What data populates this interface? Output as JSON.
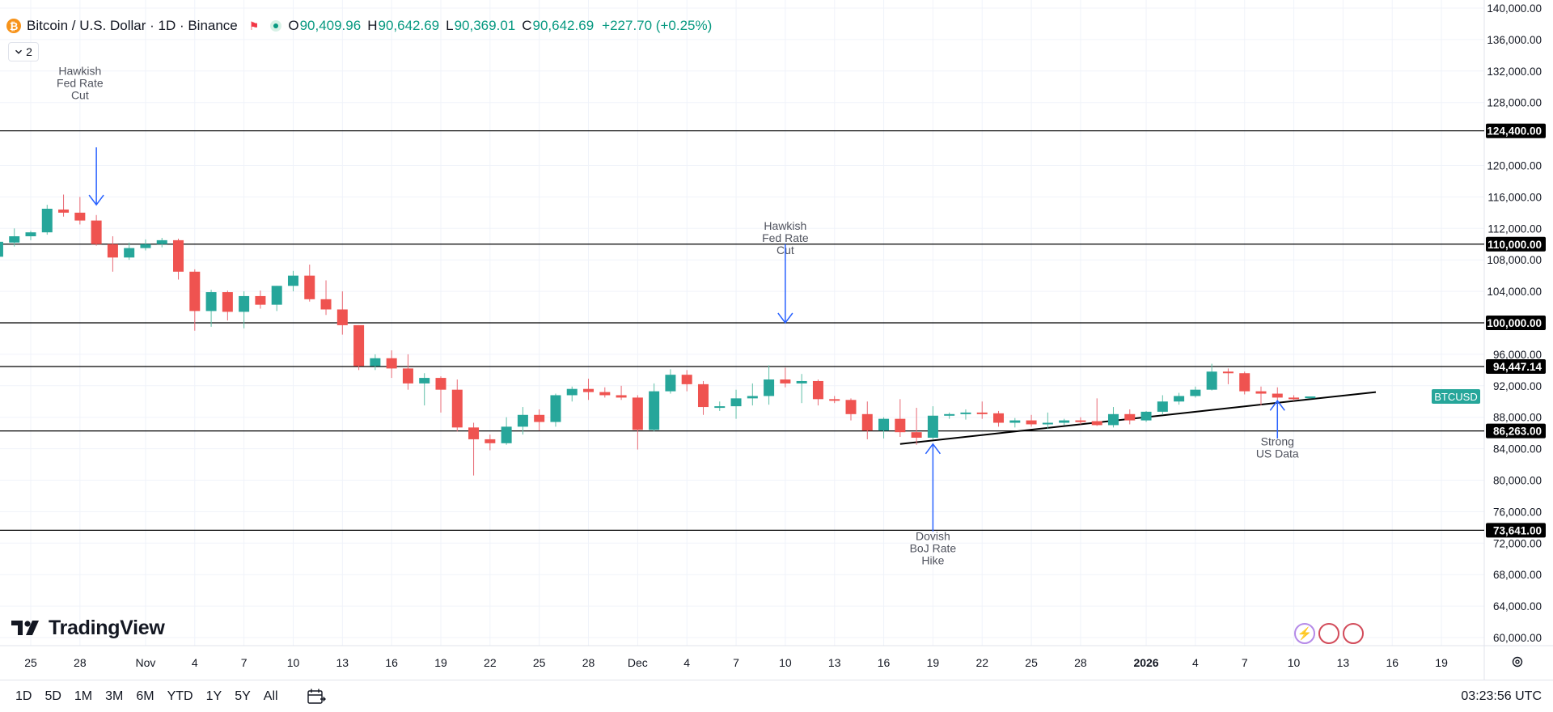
{
  "header": {
    "symbol_title": "Bitcoin / U.S. Dollar · 1D · Binance",
    "coin_glyph": "₿",
    "flag_icon": "flag-icon",
    "o_label": "O",
    "o_value": "90,409.96",
    "h_label": "H",
    "h_value": "90,642.69",
    "l_label": "L",
    "l_value": "90,369.01",
    "c_label": "C",
    "c_value": "90,642.69",
    "change": "+227.70 (+0.25%)"
  },
  "indicator_toggle": {
    "icon": "chevron-down-icon",
    "count": "2"
  },
  "logo": {
    "text": "TradingView"
  },
  "bottom_bar": {
    "ranges": [
      "1D",
      "5D",
      "1M",
      "3M",
      "6M",
      "YTD",
      "1Y",
      "5Y",
      "All"
    ],
    "compare_icon": "calendar-range-icon",
    "clock": "03:23:56 UTC"
  },
  "colors": {
    "up": "#26a69a",
    "down": "#ef5350",
    "up_wick": "#5fbfa7",
    "down_wick": "#e86a75",
    "arrow": "#2962ff",
    "annotation": "#50535e",
    "hline": "#000000",
    "grid": "#f0f3fa"
  },
  "chart_data": {
    "type": "candlestick",
    "title": "Bitcoin / U.S. Dollar · 1D · Binance",
    "ylim": [
      58000,
      141000
    ],
    "y_axis_ticks": [
      {
        "v": 60000,
        "label": "60,000.00"
      },
      {
        "v": 64000,
        "label": "64,000.00"
      },
      {
        "v": 68000,
        "label": "68,000.00"
      },
      {
        "v": 72000,
        "label": "72,000.00"
      },
      {
        "v": 76000,
        "label": "76,000.00"
      },
      {
        "v": 80000,
        "label": "80,000.00"
      },
      {
        "v": 84000,
        "label": "84,000.00"
      },
      {
        "v": 88000,
        "label": "88,000.00"
      },
      {
        "v": 92000,
        "label": "92,000.00"
      },
      {
        "v": 96000,
        "label": "96,000.00"
      },
      {
        "v": 104000,
        "label": "104,000.00"
      },
      {
        "v": 108000,
        "label": "108,000.00"
      },
      {
        "v": 112000,
        "label": "112,000.00"
      },
      {
        "v": 116000,
        "label": "116,000.00"
      },
      {
        "v": 120000,
        "label": "120,000.00"
      },
      {
        "v": 128000,
        "label": "128,000.00"
      },
      {
        "v": 132000,
        "label": "132,000.00"
      },
      {
        "v": 136000,
        "label": "136,000.00"
      },
      {
        "v": 140000,
        "label": "140,000.00"
      }
    ],
    "x_axis_ticks": [
      {
        "d": "2025-10-25",
        "label": "25"
      },
      {
        "d": "2025-10-28",
        "label": "28"
      },
      {
        "d": "2025-11-01",
        "label": "Nov"
      },
      {
        "d": "2025-11-04",
        "label": "4"
      },
      {
        "d": "2025-11-07",
        "label": "7"
      },
      {
        "d": "2025-11-10",
        "label": "10"
      },
      {
        "d": "2025-11-13",
        "label": "13"
      },
      {
        "d": "2025-11-16",
        "label": "16"
      },
      {
        "d": "2025-11-19",
        "label": "19"
      },
      {
        "d": "2025-11-22",
        "label": "22"
      },
      {
        "d": "2025-11-25",
        "label": "25"
      },
      {
        "d": "2025-11-28",
        "label": "28"
      },
      {
        "d": "2025-12-01",
        "label": "Dec"
      },
      {
        "d": "2025-12-04",
        "label": "4"
      },
      {
        "d": "2025-12-07",
        "label": "7"
      },
      {
        "d": "2025-12-10",
        "label": "10"
      },
      {
        "d": "2025-12-13",
        "label": "13"
      },
      {
        "d": "2025-12-16",
        "label": "16"
      },
      {
        "d": "2025-12-19",
        "label": "19"
      },
      {
        "d": "2025-12-22",
        "label": "22"
      },
      {
        "d": "2025-12-25",
        "label": "25"
      },
      {
        "d": "2025-12-28",
        "label": "28"
      },
      {
        "d": "2026-01-01",
        "label": "2026"
      },
      {
        "d": "2026-01-04",
        "label": "4"
      },
      {
        "d": "2026-01-07",
        "label": "7"
      },
      {
        "d": "2026-01-10",
        "label": "10"
      },
      {
        "d": "2026-01-13",
        "label": "13"
      },
      {
        "d": "2026-01-16",
        "label": "16"
      },
      {
        "d": "2026-01-19",
        "label": "19"
      }
    ],
    "candles": [
      {
        "d": "2025-10-23",
        "o": 108400,
        "h": 110600,
        "l": 107500,
        "c": 110300
      },
      {
        "d": "2025-10-24",
        "o": 110200,
        "h": 112000,
        "l": 109700,
        "c": 111000
      },
      {
        "d": "2025-10-25",
        "o": 111000,
        "h": 111700,
        "l": 110500,
        "c": 111500
      },
      {
        "d": "2025-10-26",
        "o": 111500,
        "h": 115000,
        "l": 111200,
        "c": 114500
      },
      {
        "d": "2025-10-27",
        "o": 114400,
        "h": 116300,
        "l": 113500,
        "c": 114000
      },
      {
        "d": "2025-10-28",
        "o": 114000,
        "h": 116000,
        "l": 112500,
        "c": 113000
      },
      {
        "d": "2025-10-29",
        "o": 113000,
        "h": 113700,
        "l": 109800,
        "c": 110000
      },
      {
        "d": "2025-10-30",
        "o": 110000,
        "h": 111000,
        "l": 106500,
        "c": 108300
      },
      {
        "d": "2025-10-31",
        "o": 108300,
        "h": 110200,
        "l": 108000,
        "c": 109500
      },
      {
        "d": "2025-11-01",
        "o": 109500,
        "h": 110600,
        "l": 109200,
        "c": 110000
      },
      {
        "d": "2025-11-02",
        "o": 110000,
        "h": 110800,
        "l": 109600,
        "c": 110500
      },
      {
        "d": "2025-11-03",
        "o": 110500,
        "h": 110700,
        "l": 105500,
        "c": 106500
      },
      {
        "d": "2025-11-04",
        "o": 106500,
        "h": 106800,
        "l": 99000,
        "c": 101500
      },
      {
        "d": "2025-11-05",
        "o": 101500,
        "h": 104200,
        "l": 99500,
        "c": 103900
      },
      {
        "d": "2025-11-06",
        "o": 103900,
        "h": 104100,
        "l": 100300,
        "c": 101400
      },
      {
        "d": "2025-11-07",
        "o": 101400,
        "h": 104000,
        "l": 99300,
        "c": 103400
      },
      {
        "d": "2025-11-08",
        "o": 103400,
        "h": 104100,
        "l": 101800,
        "c": 102300
      },
      {
        "d": "2025-11-09",
        "o": 102300,
        "h": 104700,
        "l": 101500,
        "c": 104700
      },
      {
        "d": "2025-11-10",
        "o": 104700,
        "h": 106600,
        "l": 104000,
        "c": 106000
      },
      {
        "d": "2025-11-11",
        "o": 106000,
        "h": 107400,
        "l": 102700,
        "c": 103000
      },
      {
        "d": "2025-11-12",
        "o": 103000,
        "h": 105400,
        "l": 101000,
        "c": 101700
      },
      {
        "d": "2025-11-13",
        "o": 101700,
        "h": 104000,
        "l": 98500,
        "c": 99700
      },
      {
        "d": "2025-11-14",
        "o": 99700,
        "h": 99700,
        "l": 94000,
        "c": 94500
      },
      {
        "d": "2025-11-15",
        "o": 94500,
        "h": 96000,
        "l": 94000,
        "c": 95500
      },
      {
        "d": "2025-11-16",
        "o": 95500,
        "h": 96500,
        "l": 93000,
        "c": 94200
      },
      {
        "d": "2025-11-17",
        "o": 94200,
        "h": 96000,
        "l": 91500,
        "c": 92300
      },
      {
        "d": "2025-11-18",
        "o": 92300,
        "h": 93600,
        "l": 89500,
        "c": 93000
      },
      {
        "d": "2025-11-19",
        "o": 93000,
        "h": 93200,
        "l": 88600,
        "c": 91500
      },
      {
        "d": "2025-11-20",
        "o": 91500,
        "h": 92800,
        "l": 86200,
        "c": 86700
      },
      {
        "d": "2025-11-21",
        "o": 86700,
        "h": 87300,
        "l": 80600,
        "c": 85200
      },
      {
        "d": "2025-11-22",
        "o": 85200,
        "h": 85800,
        "l": 83800,
        "c": 84700
      },
      {
        "d": "2025-11-23",
        "o": 84700,
        "h": 88000,
        "l": 84500,
        "c": 86800
      },
      {
        "d": "2025-11-24",
        "o": 86800,
        "h": 89300,
        "l": 85800,
        "c": 88300
      },
      {
        "d": "2025-11-25",
        "o": 88300,
        "h": 89000,
        "l": 86300,
        "c": 87400
      },
      {
        "d": "2025-11-26",
        "o": 87400,
        "h": 91000,
        "l": 86800,
        "c": 90800
      },
      {
        "d": "2025-11-27",
        "o": 90800,
        "h": 91900,
        "l": 90000,
        "c": 91600
      },
      {
        "d": "2025-11-28",
        "o": 91600,
        "h": 92900,
        "l": 90200,
        "c": 91200
      },
      {
        "d": "2025-11-29",
        "o": 91200,
        "h": 91800,
        "l": 90500,
        "c": 90800
      },
      {
        "d": "2025-11-30",
        "o": 90800,
        "h": 92000,
        "l": 90200,
        "c": 90500
      },
      {
        "d": "2025-12-01",
        "o": 90500,
        "h": 90800,
        "l": 83900,
        "c": 86400
      },
      {
        "d": "2025-12-02",
        "o": 86400,
        "h": 92300,
        "l": 86200,
        "c": 91300
      },
      {
        "d": "2025-12-03",
        "o": 91300,
        "h": 94100,
        "l": 91000,
        "c": 93400
      },
      {
        "d": "2025-12-04",
        "o": 93400,
        "h": 94000,
        "l": 91300,
        "c": 92200
      },
      {
        "d": "2025-12-05",
        "o": 92200,
        "h": 92600,
        "l": 88300,
        "c": 89300
      },
      {
        "d": "2025-12-06",
        "o": 89300,
        "h": 90000,
        "l": 88800,
        "c": 89400
      },
      {
        "d": "2025-12-07",
        "o": 89400,
        "h": 91500,
        "l": 87800,
        "c": 90400
      },
      {
        "d": "2025-12-08",
        "o": 90400,
        "h": 92300,
        "l": 89500,
        "c": 90700
      },
      {
        "d": "2025-12-09",
        "o": 90700,
        "h": 94600,
        "l": 89600,
        "c": 92800
      },
      {
        "d": "2025-12-10",
        "o": 92800,
        "h": 94300,
        "l": 91800,
        "c": 92300
      },
      {
        "d": "2025-12-11",
        "o": 92300,
        "h": 93500,
        "l": 89800,
        "c": 92600
      },
      {
        "d": "2025-12-12",
        "o": 92600,
        "h": 92800,
        "l": 89500,
        "c": 90300
      },
      {
        "d": "2025-12-13",
        "o": 90300,
        "h": 90700,
        "l": 89800,
        "c": 90200
      },
      {
        "d": "2025-12-14",
        "o": 90200,
        "h": 90400,
        "l": 87600,
        "c": 88400
      },
      {
        "d": "2025-12-15",
        "o": 88400,
        "h": 90000,
        "l": 85200,
        "c": 86300
      },
      {
        "d": "2025-12-16",
        "o": 86300,
        "h": 88000,
        "l": 85300,
        "c": 87800
      },
      {
        "d": "2025-12-17",
        "o": 87800,
        "h": 90300,
        "l": 85500,
        "c": 86100
      },
      {
        "d": "2025-12-18",
        "o": 86100,
        "h": 89200,
        "l": 84500,
        "c": 85400
      },
      {
        "d": "2025-12-19",
        "o": 85400,
        "h": 89400,
        "l": 85200,
        "c": 88200
      },
      {
        "d": "2025-12-20",
        "o": 88200,
        "h": 88600,
        "l": 87800,
        "c": 88400
      },
      {
        "d": "2025-12-21",
        "o": 88400,
        "h": 89000,
        "l": 87700,
        "c": 88600
      },
      {
        "d": "2025-12-22",
        "o": 88600,
        "h": 90000,
        "l": 87800,
        "c": 88500
      },
      {
        "d": "2025-12-23",
        "o": 88500,
        "h": 88800,
        "l": 86800,
        "c": 87300
      },
      {
        "d": "2025-12-24",
        "o": 87300,
        "h": 87900,
        "l": 86700,
        "c": 87600
      },
      {
        "d": "2025-12-25",
        "o": 87600,
        "h": 88300,
        "l": 86800,
        "c": 87100
      },
      {
        "d": "2025-12-26",
        "o": 87100,
        "h": 88600,
        "l": 86500,
        "c": 87300
      },
      {
        "d": "2025-12-27",
        "o": 87300,
        "h": 87800,
        "l": 87000,
        "c": 87600
      },
      {
        "d": "2025-12-28",
        "o": 87600,
        "h": 88000,
        "l": 87100,
        "c": 87500
      },
      {
        "d": "2025-12-29",
        "o": 87500,
        "h": 90400,
        "l": 86900,
        "c": 87000
      },
      {
        "d": "2025-12-30",
        "o": 87000,
        "h": 89300,
        "l": 86700,
        "c": 88400
      },
      {
        "d": "2025-12-31",
        "o": 88400,
        "h": 89000,
        "l": 87100,
        "c": 87600
      },
      {
        "d": "2026-01-01",
        "o": 87600,
        "h": 88800,
        "l": 87400,
        "c": 88700
      },
      {
        "d": "2026-01-02",
        "o": 88700,
        "h": 90800,
        "l": 88300,
        "c": 90000
      },
      {
        "d": "2026-01-03",
        "o": 90000,
        "h": 91100,
        "l": 89600,
        "c": 90700
      },
      {
        "d": "2026-01-04",
        "o": 90700,
        "h": 91900,
        "l": 90500,
        "c": 91500
      },
      {
        "d": "2026-01-05",
        "o": 91500,
        "h": 94800,
        "l": 91400,
        "c": 93800
      },
      {
        "d": "2026-01-06",
        "o": 93800,
        "h": 94200,
        "l": 92200,
        "c": 93600
      },
      {
        "d": "2026-01-07",
        "o": 93600,
        "h": 93800,
        "l": 90900,
        "c": 91300
      },
      {
        "d": "2026-01-08",
        "o": 91300,
        "h": 91900,
        "l": 89500,
        "c": 91000
      },
      {
        "d": "2026-01-09",
        "o": 91000,
        "h": 91800,
        "l": 89600,
        "c": 90500
      },
      {
        "d": "2026-01-10",
        "o": 90500,
        "h": 90800,
        "l": 90100,
        "c": 90400
      },
      {
        "d": "2026-01-11",
        "o": 90409.96,
        "h": 90642.69,
        "l": 90369.01,
        "c": 90642.69
      }
    ],
    "horizontal_levels": [
      {
        "v": 124400,
        "label": "124,400.00"
      },
      {
        "v": 110000,
        "label": "110,000.00"
      },
      {
        "v": 100000,
        "label": "100,000.00"
      },
      {
        "v": 94447.14,
        "label": "94,447.14"
      },
      {
        "v": 86263,
        "label": "86,263.00"
      },
      {
        "v": 73641,
        "label": "73,641.00"
      }
    ],
    "trendline": {
      "from": {
        "d": "2025-12-17",
        "v": 84600
      },
      "to": {
        "d": "2026-01-15",
        "v": 91200
      }
    },
    "price_tag": {
      "label": "BTCUSD",
      "v": 90642.69
    },
    "annotations": [
      {
        "lines": [
          "Hawkish",
          "Fed Rate",
          "Cut"
        ],
        "text_d": "2025-10-28",
        "text_v": 131500,
        "arrow": {
          "d": "2025-10-29",
          "from": 122300,
          "to": 115000
        }
      },
      {
        "lines": [
          "Hawkish",
          "Fed Rate",
          "Cut"
        ],
        "text_d": "2025-12-10",
        "text_v": 111800,
        "arrow": {
          "d": "2025-12-10",
          "from": 110000,
          "to": 100000
        }
      },
      {
        "lines": [
          "Dovish",
          "BoJ Rate",
          "Hike"
        ],
        "text_d": "2025-12-19",
        "text_v": 72400,
        "arrow": {
          "d": "2025-12-19",
          "from": 73500,
          "to": 84600
        }
      },
      {
        "lines": [
          "Strong",
          "US Data"
        ],
        "text_d": "2026-01-09",
        "text_v": 84400,
        "arrow": {
          "d": "2026-01-09",
          "from": 85300,
          "to": 90100
        }
      }
    ]
  }
}
